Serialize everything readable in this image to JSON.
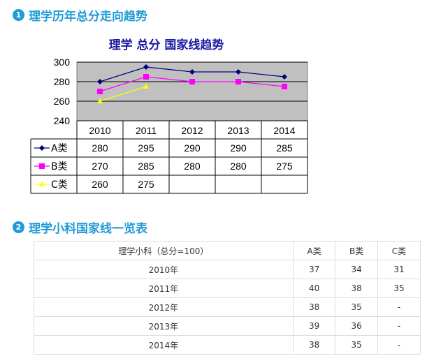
{
  "section1": {
    "number": "1",
    "title": "理学历年总分走向趋势"
  },
  "section2": {
    "number": "2",
    "title": "理学小科国家线一览表"
  },
  "chart_data": {
    "type": "line",
    "title": "理学  总分  国家线趋势",
    "categories": [
      "2010",
      "2011",
      "2012",
      "2013",
      "2014"
    ],
    "ylim": [
      240,
      300
    ],
    "yticks": [
      240,
      260,
      280,
      300
    ],
    "grid": true,
    "legend": "table-left",
    "series": [
      {
        "name": "A类",
        "values": [
          280,
          295,
          290,
          290,
          285
        ],
        "color": "#000080",
        "marker": "diamond"
      },
      {
        "name": "B类",
        "values": [
          270,
          285,
          280,
          280,
          275
        ],
        "color": "#ff00ff",
        "marker": "square"
      },
      {
        "name": "C类",
        "values": [
          260,
          275,
          null,
          null,
          null
        ],
        "color": "#ffff00",
        "marker": "triangle"
      }
    ]
  },
  "table": {
    "headers": [
      "理学小科（总分=100）",
      "A类",
      "B类",
      "C类"
    ],
    "rows": [
      [
        "2010年",
        "37",
        "34",
        "31"
      ],
      [
        "2011年",
        "40",
        "38",
        "35"
      ],
      [
        "2012年",
        "38",
        "35",
        "-"
      ],
      [
        "2013年",
        "39",
        "36",
        "-"
      ],
      [
        "2014年",
        "38",
        "35",
        "-"
      ]
    ]
  }
}
